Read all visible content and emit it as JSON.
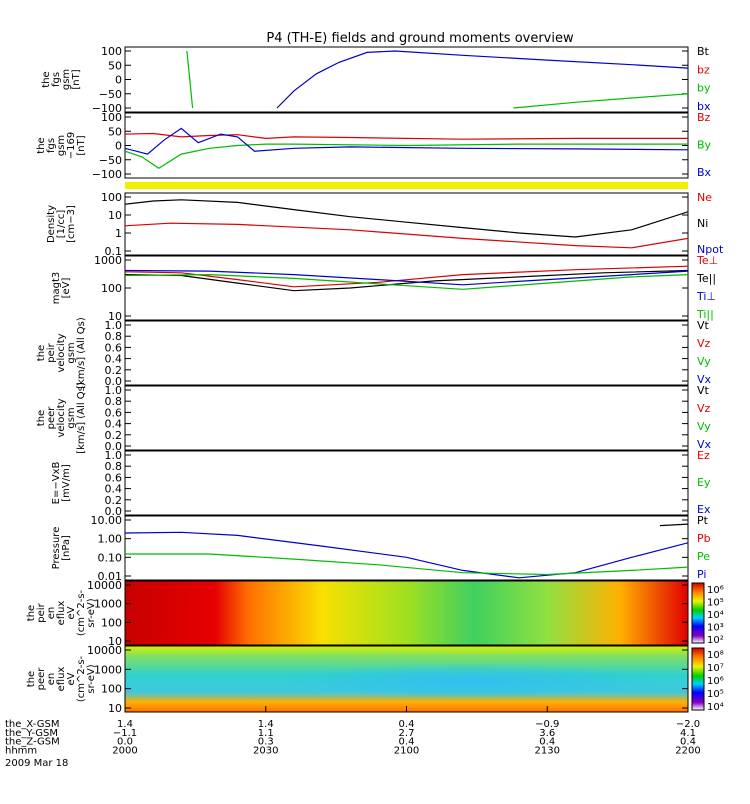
{
  "chart_data": {
    "type": "line",
    "title": "P4 (TH-E) fields and ground moments overview",
    "panels": [
      {
        "ylabel": [
          "the",
          "fgs",
          "gsm",
          "[nT]"
        ],
        "ticks": [
          "100",
          "50",
          "0",
          "−50",
          "−100"
        ],
        "legend": [
          {
            "text": "Bt",
            "color": "#000000"
          },
          {
            "text": "bz",
            "color": "#dd0000"
          },
          {
            "text": "by",
            "color": "#00bb00"
          },
          {
            "text": "bx",
            "color": "#0000cc"
          }
        ],
        "series": [
          {
            "name": "Bt",
            "color": "#0000cc",
            "points": [
              [
                0.27,
                -100
              ],
              [
                0.3,
                -40
              ],
              [
                0.34,
                20
              ],
              [
                0.38,
                60
              ],
              [
                0.43,
                95
              ],
              [
                0.48,
                100
              ],
              [
                0.6,
                85
              ],
              [
                0.75,
                68
              ],
              [
                0.9,
                52
              ],
              [
                1.0,
                40
              ]
            ]
          },
          {
            "name": "by",
            "color": "#00bb00",
            "points": [
              [
                0.11,
                100
              ],
              [
                0.12,
                -100
              ]
            ]
          },
          {
            "name": "by2",
            "color": "#00bb00",
            "points": [
              [
                0.69,
                -100
              ],
              [
                0.8,
                -80
              ],
              [
                0.9,
                -65
              ],
              [
                1.0,
                -50
              ]
            ]
          }
        ]
      },
      {
        "ylabel": [
          "the",
          "fgs",
          "gsm",
          "−169",
          "[nT]"
        ],
        "ticks": [
          "100",
          "50",
          "0",
          "−50",
          "−100"
        ],
        "legend": [
          {
            "text": "Bz",
            "color": "#dd0000"
          },
          {
            "text": "By",
            "color": "#00bb00"
          },
          {
            "text": "Bx",
            "color": "#0000cc"
          }
        ],
        "series": [
          {
            "name": "Bz",
            "color": "#dd0000",
            "points": [
              [
                0,
                40
              ],
              [
                0.05,
                42
              ],
              [
                0.1,
                30
              ],
              [
                0.15,
                35
              ],
              [
                0.2,
                38
              ],
              [
                0.25,
                25
              ],
              [
                0.3,
                30
              ],
              [
                0.4,
                28
              ],
              [
                0.6,
                22
              ],
              [
                0.8,
                25
              ],
              [
                1.0,
                25
              ]
            ]
          },
          {
            "name": "By",
            "color": "#00bb00",
            "points": [
              [
                0,
                -20
              ],
              [
                0.03,
                -40
              ],
              [
                0.06,
                -80
              ],
              [
                0.1,
                -30
              ],
              [
                0.15,
                -10
              ],
              [
                0.2,
                0
              ],
              [
                0.25,
                5
              ],
              [
                0.3,
                5
              ],
              [
                0.5,
                0
              ],
              [
                0.7,
                5
              ],
              [
                1.0,
                5
              ]
            ]
          },
          {
            "name": "Bx",
            "color": "#0000cc",
            "points": [
              [
                0,
                -10
              ],
              [
                0.04,
                -30
              ],
              [
                0.07,
                20
              ],
              [
                0.1,
                60
              ],
              [
                0.13,
                10
              ],
              [
                0.17,
                40
              ],
              [
                0.2,
                30
              ],
              [
                0.23,
                -20
              ],
              [
                0.3,
                -10
              ],
              [
                0.4,
                -5
              ],
              [
                0.6,
                -10
              ],
              [
                0.8,
                -12
              ],
              [
                1.0,
                -15
              ]
            ]
          }
        ]
      },
      {
        "ylabel": [
          "Density",
          "[1/cc]",
          "[cm−3]"
        ],
        "ticks": [
          "100",
          "10",
          "1",
          "0.1"
        ],
        "log": true,
        "legend": [
          {
            "text": "Ne",
            "color": "#dd0000"
          },
          {
            "text": "Ni",
            "color": "#000000"
          },
          {
            "text": "Npot",
            "color": "#0000cc"
          }
        ],
        "series": [
          {
            "name": "Ni",
            "color": "#000000",
            "points": [
              [
                0,
                40
              ],
              [
                0.05,
                60
              ],
              [
                0.1,
                70
              ],
              [
                0.2,
                50
              ],
              [
                0.3,
                20
              ],
              [
                0.4,
                8
              ],
              [
                0.5,
                4
              ],
              [
                0.6,
                2
              ],
              [
                0.7,
                1
              ],
              [
                0.8,
                0.6
              ],
              [
                0.9,
                1.5
              ],
              [
                1.0,
                15
              ]
            ]
          },
          {
            "name": "Ne",
            "color": "#dd0000",
            "points": [
              [
                0,
                2.5
              ],
              [
                0.08,
                3.5
              ],
              [
                0.2,
                3
              ],
              [
                0.4,
                1.5
              ],
              [
                0.6,
                0.5
              ],
              [
                0.8,
                0.2
              ],
              [
                0.9,
                0.15
              ],
              [
                1.0,
                0.5
              ]
            ]
          }
        ]
      },
      {
        "ylabel": [
          "magt3",
          "[eV]"
        ],
        "ticks": [
          "1000",
          "100",
          "10"
        ],
        "log": true,
        "legend": [
          {
            "text": "Te⊥",
            "color": "#dd0000"
          },
          {
            "text": "Te||",
            "color": "#000000"
          },
          {
            "text": "Ti⊥",
            "color": "#0000cc"
          },
          {
            "text": "Ti||",
            "color": "#00bb00"
          }
        ],
        "series": [
          {
            "name": "Te||",
            "color": "#000000",
            "points": [
              [
                0,
                300
              ],
              [
                0.1,
                280
              ],
              [
                0.2,
                150
              ],
              [
                0.3,
                80
              ],
              [
                0.4,
                100
              ],
              [
                0.55,
                180
              ],
              [
                0.7,
                250
              ],
              [
                0.85,
                350
              ],
              [
                1.0,
                420
              ]
            ]
          },
          {
            "name": "Te⊥",
            "color": "#dd0000",
            "points": [
              [
                0,
                380
              ],
              [
                0.1,
                350
              ],
              [
                0.2,
                200
              ],
              [
                0.3,
                110
              ],
              [
                0.45,
                160
              ],
              [
                0.6,
                300
              ],
              [
                0.8,
                450
              ],
              [
                1.0,
                600
              ]
            ]
          },
          {
            "name": "Ti⊥",
            "color": "#0000cc",
            "points": [
              [
                0,
                420
              ],
              [
                0.15,
                400
              ],
              [
                0.3,
                300
              ],
              [
                0.45,
                200
              ],
              [
                0.6,
                130
              ],
              [
                0.75,
                200
              ],
              [
                0.9,
                300
              ],
              [
                1.0,
                400
              ]
            ]
          },
          {
            "name": "Ti||",
            "color": "#00bb00",
            "points": [
              [
                0,
                280
              ],
              [
                0.15,
                300
              ],
              [
                0.3,
                220
              ],
              [
                0.45,
                140
              ],
              [
                0.6,
                90
              ],
              [
                0.75,
                150
              ],
              [
                0.9,
                250
              ],
              [
                1.0,
                300
              ]
            ]
          }
        ]
      },
      {
        "ylabel": [
          "the",
          "peir",
          "velocity",
          "gsm",
          "[km/s] (All Qs)"
        ],
        "ticks": [
          "1.0",
          "0.8",
          "0.6",
          "0.4",
          "0.2",
          "0.0"
        ],
        "legend": [
          {
            "text": "Vt",
            "color": "#000000"
          },
          {
            "text": "Vz",
            "color": "#dd0000"
          },
          {
            "text": "Vy",
            "color": "#00bb00"
          },
          {
            "text": "Vx",
            "color": "#0000cc"
          }
        ],
        "series": []
      },
      {
        "ylabel": [
          "the",
          "peer",
          "velocity",
          "gsm",
          "[km/s] (All Qs)"
        ],
        "ticks": [
          "1.0",
          "0.8",
          "0.6",
          "0.4",
          "0.2",
          "0.0"
        ],
        "legend": [
          {
            "text": "Vt",
            "color": "#000000"
          },
          {
            "text": "Vz",
            "color": "#dd0000"
          },
          {
            "text": "Vy",
            "color": "#00bb00"
          },
          {
            "text": "Vx",
            "color": "#0000cc"
          }
        ],
        "series": []
      },
      {
        "ylabel": [
          "E=−VxB",
          "[mV/m]"
        ],
        "ticks": [
          "1.0",
          "0.8",
          "0.6",
          "0.4",
          "0.2",
          "0.0"
        ],
        "legend": [
          {
            "text": "Ez",
            "color": "#dd0000"
          },
          {
            "text": "Ey",
            "color": "#00bb00"
          },
          {
            "text": "Ex",
            "color": "#0000cc"
          }
        ],
        "series": []
      },
      {
        "ylabel": [
          "Pressure",
          "[nPa]"
        ],
        "ticks": [
          "10.00",
          "1.00",
          "0.10",
          "0.01"
        ],
        "log": true,
        "legend": [
          {
            "text": "Pt",
            "color": "#000000"
          },
          {
            "text": "Pb",
            "color": "#dd0000"
          },
          {
            "text": "Pe",
            "color": "#00bb00"
          },
          {
            "text": "Pi",
            "color": "#0000cc"
          }
        ],
        "series": [
          {
            "name": "Pi",
            "color": "#0000cc",
            "points": [
              [
                0,
                2
              ],
              [
                0.1,
                2.2
              ],
              [
                0.2,
                1.5
              ],
              [
                0.35,
                0.4
              ],
              [
                0.5,
                0.1
              ],
              [
                0.6,
                0.02
              ],
              [
                0.7,
                0.008
              ],
              [
                0.8,
                0.015
              ],
              [
                0.9,
                0.1
              ],
              [
                1.0,
                0.6
              ]
            ]
          },
          {
            "name": "Pe",
            "color": "#00bb00",
            "points": [
              [
                0,
                0.15
              ],
              [
                0.15,
                0.15
              ],
              [
                0.3,
                0.08
              ],
              [
                0.45,
                0.04
              ],
              [
                0.6,
                0.015
              ],
              [
                0.75,
                0.012
              ],
              [
                0.9,
                0.02
              ],
              [
                1.0,
                0.03
              ]
            ]
          },
          {
            "name": "Pt",
            "color": "#000000",
            "points": [
              [
                0.95,
                5
              ],
              [
                1.0,
                6
              ]
            ]
          }
        ]
      },
      {
        "ylabel": [
          "the",
          "peir",
          "en",
          "eflux",
          "eV",
          "(cm^2-s-",
          "sr-eV)"
        ],
        "ticks": [
          "10000",
          "1000",
          "100",
          "10"
        ],
        "spectro": "i",
        "cbar": [
          "10⁶",
          "10⁵",
          "10⁴",
          "10³",
          "10²"
        ]
      },
      {
        "ylabel": [
          "the",
          "peer",
          "en",
          "eflux",
          "eV",
          "(cm^2-s-",
          "sr-eV)"
        ],
        "ticks": [
          "10000",
          "1000",
          "100",
          "10"
        ],
        "spectro": "e",
        "cbar": [
          "10⁸",
          "10⁷",
          "10⁶",
          "10⁵",
          "10⁴"
        ]
      }
    ],
    "xaxis": {
      "rows": [
        {
          "label": "the_X-GSM",
          "values": [
            "1.4",
            "1.4",
            "0.4",
            "−0.9",
            "−2.0"
          ]
        },
        {
          "label": "the_Y-GSM",
          "values": [
            "−1.1",
            "1.1",
            "2.7",
            "3.6",
            "4.1"
          ]
        },
        {
          "label": "the_Z-GSM",
          "values": [
            "0.0",
            "0.3",
            "0.4",
            "0.4",
            "0.4"
          ]
        },
        {
          "label": "hhmm",
          "values": [
            "2000",
            "2030",
            "2100",
            "2130",
            "2200"
          ]
        }
      ],
      "date": "2009 Mar 18"
    }
  }
}
